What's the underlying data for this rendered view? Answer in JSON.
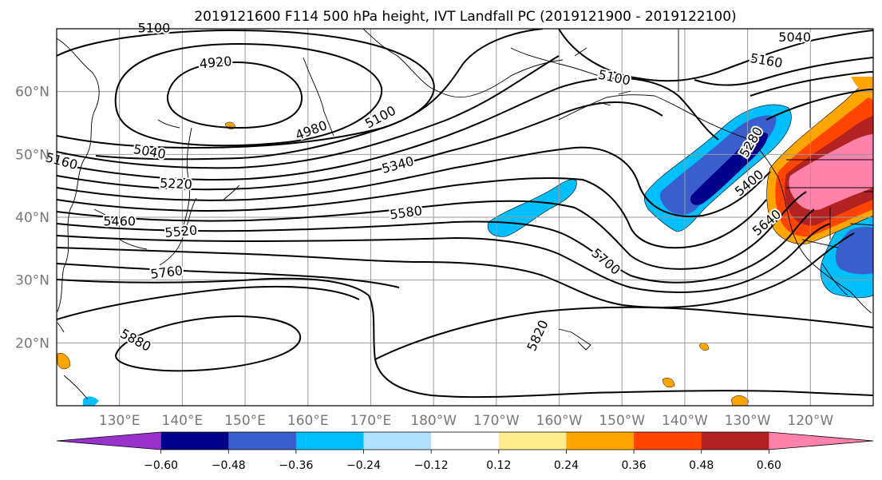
{
  "title": "2019121600 F114 500 hPa height, IVT Landfall PC (2019121900 - 2019122100)",
  "axes": {
    "lon_ticks": [
      {
        "label": "130°E",
        "lon": 130
      },
      {
        "label": "140°E",
        "lon": 140
      },
      {
        "label": "150°E",
        "lon": 150
      },
      {
        "label": "160°E",
        "lon": 160
      },
      {
        "label": "170°E",
        "lon": 170
      },
      {
        "label": "180°W",
        "lon": 180
      },
      {
        "label": "170°W",
        "lon": 190
      },
      {
        "label": "160°W",
        "lon": 200
      },
      {
        "label": "150°W",
        "lon": 210
      },
      {
        "label": "140°W",
        "lon": 220
      },
      {
        "label": "130°W",
        "lon": 230
      },
      {
        "label": "120°W",
        "lon": 240
      }
    ],
    "lat_ticks": [
      {
        "label": "20°N",
        "lat": 20
      },
      {
        "label": "30°N",
        "lat": 30
      },
      {
        "label": "40°N",
        "lat": 40
      },
      {
        "label": "50°N",
        "lat": 50
      },
      {
        "label": "60°N",
        "lat": 60
      }
    ],
    "lon_range": [
      120,
      250
    ],
    "lat_range": [
      10,
      70
    ],
    "grid": true
  },
  "colorbar": {
    "ticks": [
      "−0.60",
      "−0.48",
      "−0.36",
      "−0.24",
      "−0.12",
      "0.12",
      "0.24",
      "0.36",
      "0.48",
      "0.60"
    ],
    "colors": [
      "#9932cc",
      "#00008b",
      "#3a5fcd",
      "#00bfff",
      "#b0e2ff",
      "#ffffff",
      "#ffec8b",
      "#ffa500",
      "#ff4500",
      "#b22222",
      "#ff82ab"
    ],
    "extend": "both"
  },
  "contour_labels": [
    {
      "text": "5100",
      "lon": 135.5,
      "lat": 70.2,
      "rot": 0
    },
    {
      "text": "4920",
      "lon": 145.3,
      "lat": 64.7,
      "rot": -5
    },
    {
      "text": "4980",
      "lon": 160.5,
      "lat": 53.9,
      "rot": -20
    },
    {
      "text": "5100",
      "lon": 171.5,
      "lat": 56.0,
      "rot": -28
    },
    {
      "text": "5040",
      "lon": 134.8,
      "lat": 50.5,
      "rot": 10
    },
    {
      "text": "5160",
      "lon": 120.8,
      "lat": 49.0,
      "rot": 15
    },
    {
      "text": "5220",
      "lon": 139.0,
      "lat": 45.4,
      "rot": 3
    },
    {
      "text": "5340",
      "lon": 174.3,
      "lat": 48.4,
      "rot": -15
    },
    {
      "text": "5460",
      "lon": 130.0,
      "lat": 39.4,
      "rot": 0
    },
    {
      "text": "5520",
      "lon": 139.8,
      "lat": 37.8,
      "rot": -5
    },
    {
      "text": "5580",
      "lon": 175.6,
      "lat": 40.8,
      "rot": -8
    },
    {
      "text": "5760",
      "lon": 137.5,
      "lat": 31.3,
      "rot": -7
    },
    {
      "text": "5880",
      "lon": 132.6,
      "lat": 20.5,
      "rot": 28
    },
    {
      "text": "5820",
      "lon": 196.5,
      "lat": 21.2,
      "rot": -65
    },
    {
      "text": "5700",
      "lon": 207.5,
      "lat": 33.0,
      "rot": 40
    },
    {
      "text": "5100",
      "lon": 208.8,
      "lat": 62.3,
      "rot": 12
    },
    {
      "text": "5040",
      "lon": 237.5,
      "lat": 68.7,
      "rot": 0
    },
    {
      "text": "5160",
      "lon": 233.0,
      "lat": 65.0,
      "rot": 10
    },
    {
      "text": "5280",
      "lon": 230.5,
      "lat": 52.0,
      "rot": -60
    },
    {
      "text": "5400",
      "lon": 230.2,
      "lat": 45.5,
      "rot": -40
    },
    {
      "text": "5640",
      "lon": 233.0,
      "lat": 39.2,
      "rot": -40
    }
  ]
}
